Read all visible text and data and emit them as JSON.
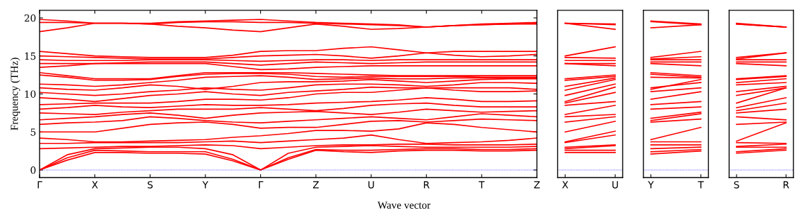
{
  "chart_data": [
    {
      "type": "line",
      "ylabel": "Frequency (THz)",
      "xlabel": "Wave vector",
      "ylim": [
        -1,
        21
      ],
      "yticks": [
        0,
        5,
        10,
        15,
        20
      ],
      "categories": [
        "Γ",
        null,
        "X",
        null,
        "S",
        null,
        "Y",
        null,
        "Γ",
        null,
        "Z",
        null,
        "U",
        null,
        "R",
        null,
        "T",
        null,
        "Z"
      ],
      "ref_lines": [
        {
          "axis": "y",
          "value": 0,
          "color": "#0000ff",
          "line_style": "dotted"
        }
      ],
      "series": [
        {
          "color": "#ff0000",
          "values": [
            0,
            1.3,
            2.3,
            2.3,
            2.2,
            2.2,
            2.1,
            1.2,
            0,
            1.4,
            2.6,
            2.4,
            2.3,
            2.5,
            2.6,
            2.6,
            2.5,
            2.5,
            2.6
          ]
        },
        {
          "color": "#ff0000",
          "values": [
            0,
            1.6,
            2.6,
            2.5,
            2.4,
            2.4,
            2.4,
            1.4,
            0,
            1.6,
            2.7,
            2.6,
            2.6,
            2.7,
            2.8,
            2.8,
            2.7,
            2.7,
            2.8
          ]
        },
        {
          "color": "#ff0000",
          "values": [
            0,
            2.0,
            2.8,
            2.9,
            3.0,
            3.0,
            2.8,
            2.0,
            0,
            2.2,
            3.0,
            3.1,
            3.2,
            3.1,
            3.0,
            3.0,
            3.0,
            3.0,
            3.1
          ]
        },
        {
          "color": "#ff0000",
          "values": [
            2.8,
            2.9,
            3.0,
            3.1,
            3.1,
            3.2,
            3.3,
            3.2,
            2.8,
            3.0,
            3.2,
            3.3,
            3.3,
            3.4,
            3.4,
            3.3,
            3.3,
            3.3,
            3.4
          ]
        },
        {
          "color": "#ff0000",
          "values": [
            3.5,
            3.5,
            3.6,
            3.6,
            3.6,
            3.6,
            3.7,
            3.8,
            3.6,
            3.8,
            4.0,
            4.2,
            4.6,
            4.0,
            3.5,
            3.6,
            3.7,
            3.9,
            4.2
          ]
        },
        {
          "color": "#ff0000",
          "values": [
            4.2,
            4.0,
            3.7,
            3.7,
            3.8,
            3.9,
            4.0,
            4.3,
            4.5,
            4.8,
            5.2,
            5.2,
            5.1,
            5.4,
            6.2,
            6.0,
            5.6,
            5.3,
            5.0
          ]
        },
        {
          "color": "#ff0000",
          "values": [
            5.0,
            5.0,
            5.0,
            5.5,
            6.0,
            6.2,
            6.3,
            6.0,
            5.5,
            5.6,
            5.6,
            6.0,
            6.4,
            6.5,
            6.3,
            6.5,
            6.7,
            6.6,
            6.5
          ]
        },
        {
          "color": "#ff0000",
          "values": [
            6.0,
            6.2,
            6.3,
            6.5,
            7.0,
            6.8,
            6.5,
            6.3,
            6.2,
            6.4,
            6.6,
            6.8,
            7.0,
            6.8,
            6.6,
            7.0,
            7.4,
            7.2,
            7.0
          ]
        },
        {
          "color": "#ff0000",
          "values": [
            6.6,
            6.8,
            7.0,
            7.3,
            7.5,
            7.2,
            6.8,
            7.2,
            7.5,
            7.6,
            7.7,
            7.5,
            7.3,
            7.6,
            8.0,
            7.8,
            7.6,
            7.7,
            7.8
          ]
        },
        {
          "color": "#ff0000",
          "values": [
            7.5,
            7.4,
            7.3,
            7.6,
            7.8,
            8.0,
            8.0,
            8.0,
            8.2,
            8.0,
            7.8,
            8.1,
            8.5,
            8.7,
            8.8,
            8.5,
            8.3,
            8.3,
            8.3
          ]
        },
        {
          "color": "#ff0000",
          "values": [
            8.0,
            8.2,
            8.5,
            8.3,
            8.2,
            8.4,
            8.6,
            8.5,
            8.5,
            8.6,
            8.8,
            8.9,
            9.0,
            9.2,
            9.5,
            9.3,
            9.0,
            9.0,
            9.1
          ]
        },
        {
          "color": "#ff0000",
          "values": [
            8.6,
            8.7,
            8.8,
            8.8,
            8.8,
            9.0,
            9.3,
            9.3,
            9.2,
            9.5,
            10.0,
            10.2,
            10.2,
            10.5,
            10.8,
            10.5,
            10.3,
            10.3,
            10.4
          ]
        },
        {
          "color": "#ff0000",
          "values": [
            9.5,
            9.3,
            9.0,
            9.4,
            9.8,
            10.0,
            10.3,
            10.0,
            9.8,
            10.2,
            10.4,
            10.6,
            10.9,
            10.8,
            10.8,
            10.8,
            10.8,
            10.8,
            10.6
          ]
        },
        {
          "color": "#ff0000",
          "values": [
            10.2,
            10.0,
            9.8,
            10.0,
            10.3,
            10.5,
            10.8,
            10.6,
            10.5,
            10.8,
            11.2,
            11.3,
            11.3,
            11.2,
            11.0,
            11.2,
            11.5,
            11.5,
            11.4
          ]
        },
        {
          "color": "#ff0000",
          "values": [
            10.8,
            10.6,
            10.5,
            10.8,
            11.2,
            11.0,
            10.6,
            11.0,
            11.5,
            11.6,
            11.6,
            11.7,
            11.9,
            11.7,
            11.5,
            11.7,
            11.9,
            12.0,
            12.0
          ]
        },
        {
          "color": "#ff0000",
          "values": [
            11.3,
            11.2,
            11.0,
            11.2,
            11.5,
            11.8,
            12.2,
            12.3,
            12.4,
            12.2,
            11.9,
            12.0,
            12.1,
            12.0,
            12.0,
            12.1,
            12.1,
            12.1,
            12.1
          ]
        },
        {
          "color": "#ff0000",
          "values": [
            12.5,
            12.2,
            11.8,
            11.8,
            11.9,
            12.3,
            12.6,
            12.7,
            12.7,
            12.6,
            12.3,
            12.2,
            12.3,
            12.3,
            12.3,
            12.3,
            12.2,
            12.2,
            12.2
          ]
        },
        {
          "color": "#ff0000",
          "values": [
            12.8,
            12.4,
            12.0,
            12.0,
            12.0,
            12.4,
            12.8,
            12.8,
            12.8,
            12.8,
            12.7,
            12.6,
            12.5,
            12.4,
            12.4,
            12.4,
            12.4,
            12.4,
            12.4
          ]
        },
        {
          "color": "#ff0000",
          "values": [
            13.5,
            13.7,
            14.0,
            14.0,
            14.0,
            14.0,
            14.0,
            13.6,
            13.2,
            13.3,
            13.5,
            13.6,
            13.7,
            13.7,
            13.7,
            13.7,
            13.7,
            13.7,
            13.7
          ]
        },
        {
          "color": "#ff0000",
          "values": [
            14.0,
            14.0,
            14.0,
            14.1,
            14.2,
            14.2,
            14.2,
            14.0,
            13.8,
            14.0,
            14.2,
            14.1,
            14.0,
            14.1,
            14.2,
            14.2,
            14.2,
            14.2,
            14.2
          ]
        },
        {
          "color": "#ff0000",
          "values": [
            14.5,
            14.4,
            14.4,
            14.4,
            14.5,
            14.5,
            14.5,
            14.4,
            14.3,
            14.4,
            14.5,
            14.5,
            14.4,
            14.5,
            14.5,
            14.5,
            14.5,
            14.5,
            14.5
          ]
        },
        {
          "color": "#ff0000",
          "values": [
            15.0,
            14.9,
            14.8,
            14.7,
            14.6,
            14.6,
            14.6,
            14.8,
            15.0,
            15.1,
            15.2,
            15.0,
            14.7,
            15.0,
            15.4,
            15.1,
            14.9,
            15.0,
            15.2
          ]
        },
        {
          "color": "#ff0000",
          "values": [
            15.6,
            15.3,
            15.0,
            14.9,
            14.8,
            14.8,
            14.8,
            15.1,
            15.6,
            15.7,
            15.7,
            16.0,
            16.2,
            15.8,
            15.4,
            15.6,
            15.6,
            15.6,
            15.6
          ]
        },
        {
          "color": "#ff0000",
          "values": [
            18.2,
            18.7,
            19.3,
            19.3,
            19.2,
            18.9,
            18.7,
            18.4,
            18.2,
            18.7,
            19.2,
            18.9,
            18.5,
            18.6,
            18.8,
            19.0,
            19.1,
            19.2,
            19.2
          ]
        },
        {
          "color": "#ff0000",
          "values": [
            19.4,
            19.4,
            19.3,
            19.3,
            19.2,
            19.4,
            19.5,
            19.5,
            19.4,
            19.4,
            19.3,
            19.2,
            19.1,
            19.0,
            18.8,
            19.0,
            19.1,
            19.2,
            19.3
          ]
        },
        {
          "color": "#ff0000",
          "values": [
            19.8,
            19.6,
            19.3,
            19.3,
            19.3,
            19.5,
            19.6,
            19.7,
            19.8,
            19.6,
            19.4,
            19.3,
            19.2,
            19.1,
            18.8,
            19.0,
            19.2,
            19.3,
            19.4
          ]
        }
      ]
    },
    {
      "type": "line",
      "tick_labels": "x",
      "ylim": [
        -1,
        21
      ],
      "yticks": [
        0,
        5,
        10,
        15,
        20
      ],
      "categories": [
        "X",
        "U"
      ],
      "ref_lines": [
        {
          "axis": "y",
          "value": 0,
          "color": "#0000ff",
          "line_style": "dotted"
        }
      ],
      "series": [
        {
          "color": "#ff0000",
          "values": [
            2.3,
            2.3
          ]
        },
        {
          "color": "#ff0000",
          "values": [
            2.6,
            2.6
          ]
        },
        {
          "color": "#ff0000",
          "values": [
            2.8,
            3.2
          ]
        },
        {
          "color": "#ff0000",
          "values": [
            3.0,
            3.3
          ]
        },
        {
          "color": "#ff0000",
          "values": [
            3.6,
            4.6
          ]
        },
        {
          "color": "#ff0000",
          "values": [
            3.7,
            5.1
          ]
        },
        {
          "color": "#ff0000",
          "values": [
            5.0,
            6.4
          ]
        },
        {
          "color": "#ff0000",
          "values": [
            6.3,
            7.0
          ]
        },
        {
          "color": "#ff0000",
          "values": [
            7.0,
            7.3
          ]
        },
        {
          "color": "#ff0000",
          "values": [
            7.3,
            8.5
          ]
        },
        {
          "color": "#ff0000",
          "values": [
            8.5,
            9.0
          ]
        },
        {
          "color": "#ff0000",
          "values": [
            8.8,
            10.2
          ]
        },
        {
          "color": "#ff0000",
          "values": [
            9.0,
            10.9
          ]
        },
        {
          "color": "#ff0000",
          "values": [
            9.8,
            11.3
          ]
        },
        {
          "color": "#ff0000",
          "values": [
            10.5,
            11.9
          ]
        },
        {
          "color": "#ff0000",
          "values": [
            11.0,
            12.1
          ]
        },
        {
          "color": "#ff0000",
          "values": [
            11.8,
            12.3
          ]
        },
        {
          "color": "#ff0000",
          "values": [
            12.0,
            12.5
          ]
        },
        {
          "color": "#ff0000",
          "values": [
            14.0,
            13.7
          ]
        },
        {
          "color": "#ff0000",
          "values": [
            14.0,
            14.0
          ]
        },
        {
          "color": "#ff0000",
          "values": [
            14.4,
            14.4
          ]
        },
        {
          "color": "#ff0000",
          "values": [
            14.8,
            14.7
          ]
        },
        {
          "color": "#ff0000",
          "values": [
            15.0,
            16.2
          ]
        },
        {
          "color": "#ff0000",
          "values": [
            19.3,
            18.5
          ]
        },
        {
          "color": "#ff0000",
          "values": [
            19.3,
            19.1
          ]
        },
        {
          "color": "#ff0000",
          "values": [
            19.3,
            19.2
          ]
        }
      ]
    },
    {
      "type": "line",
      "tick_labels": "x",
      "ylim": [
        -1,
        21
      ],
      "yticks": [
        0,
        5,
        10,
        15,
        20
      ],
      "categories": [
        "Y",
        "T"
      ],
      "ref_lines": [
        {
          "axis": "y",
          "value": 0,
          "color": "#0000ff",
          "line_style": "dotted"
        }
      ],
      "series": [
        {
          "color": "#ff0000",
          "values": [
            2.1,
            2.5
          ]
        },
        {
          "color": "#ff0000",
          "values": [
            2.4,
            2.7
          ]
        },
        {
          "color": "#ff0000",
          "values": [
            2.8,
            3.0
          ]
        },
        {
          "color": "#ff0000",
          "values": [
            3.3,
            3.3
          ]
        },
        {
          "color": "#ff0000",
          "values": [
            3.7,
            3.7
          ]
        },
        {
          "color": "#ff0000",
          "values": [
            4.0,
            5.6
          ]
        },
        {
          "color": "#ff0000",
          "values": [
            6.3,
            6.7
          ]
        },
        {
          "color": "#ff0000",
          "values": [
            6.5,
            7.4
          ]
        },
        {
          "color": "#ff0000",
          "values": [
            6.8,
            7.6
          ]
        },
        {
          "color": "#ff0000",
          "values": [
            8.0,
            8.3
          ]
        },
        {
          "color": "#ff0000",
          "values": [
            8.6,
            9.0
          ]
        },
        {
          "color": "#ff0000",
          "values": [
            9.3,
            10.3
          ]
        },
        {
          "color": "#ff0000",
          "values": [
            10.3,
            10.8
          ]
        },
        {
          "color": "#ff0000",
          "values": [
            10.8,
            11.5
          ]
        },
        {
          "color": "#ff0000",
          "values": [
            10.6,
            11.9
          ]
        },
        {
          "color": "#ff0000",
          "values": [
            12.2,
            12.1
          ]
        },
        {
          "color": "#ff0000",
          "values": [
            12.6,
            12.2
          ]
        },
        {
          "color": "#ff0000",
          "values": [
            12.8,
            12.4
          ]
        },
        {
          "color": "#ff0000",
          "values": [
            14.0,
            13.7
          ]
        },
        {
          "color": "#ff0000",
          "values": [
            14.2,
            14.2
          ]
        },
        {
          "color": "#ff0000",
          "values": [
            14.5,
            14.5
          ]
        },
        {
          "color": "#ff0000",
          "values": [
            14.6,
            14.9
          ]
        },
        {
          "color": "#ff0000",
          "values": [
            14.8,
            15.6
          ]
        },
        {
          "color": "#ff0000",
          "values": [
            18.7,
            19.1
          ]
        },
        {
          "color": "#ff0000",
          "values": [
            19.5,
            19.1
          ]
        },
        {
          "color": "#ff0000",
          "values": [
            19.6,
            19.2
          ]
        }
      ]
    },
    {
      "type": "line",
      "tick_labels": "x",
      "ylim": [
        -1,
        21
      ],
      "yticks": [
        0,
        5,
        10,
        15,
        20
      ],
      "categories": [
        "S",
        "R"
      ],
      "ref_lines": [
        {
          "axis": "y",
          "value": 0,
          "color": "#0000ff",
          "line_style": "dotted"
        }
      ],
      "series": [
        {
          "color": "#ff0000",
          "values": [
            2.2,
            2.6
          ]
        },
        {
          "color": "#ff0000",
          "values": [
            2.4,
            2.8
          ]
        },
        {
          "color": "#ff0000",
          "values": [
            3.0,
            3.0
          ]
        },
        {
          "color": "#ff0000",
          "values": [
            3.1,
            3.4
          ]
        },
        {
          "color": "#ff0000",
          "values": [
            3.6,
            3.5
          ]
        },
        {
          "color": "#ff0000",
          "values": [
            3.8,
            6.2
          ]
        },
        {
          "color": "#ff0000",
          "values": [
            6.0,
            6.3
          ]
        },
        {
          "color": "#ff0000",
          "values": [
            7.0,
            6.6
          ]
        },
        {
          "color": "#ff0000",
          "values": [
            7.5,
            8.0
          ]
        },
        {
          "color": "#ff0000",
          "values": [
            7.8,
            8.8
          ]
        },
        {
          "color": "#ff0000",
          "values": [
            8.2,
            9.5
          ]
        },
        {
          "color": "#ff0000",
          "values": [
            8.8,
            10.8
          ]
        },
        {
          "color": "#ff0000",
          "values": [
            9.8,
            10.8
          ]
        },
        {
          "color": "#ff0000",
          "values": [
            10.3,
            11.0
          ]
        },
        {
          "color": "#ff0000",
          "values": [
            11.2,
            11.5
          ]
        },
        {
          "color": "#ff0000",
          "values": [
            11.5,
            12.0
          ]
        },
        {
          "color": "#ff0000",
          "values": [
            11.9,
            12.3
          ]
        },
        {
          "color": "#ff0000",
          "values": [
            12.0,
            12.4
          ]
        },
        {
          "color": "#ff0000",
          "values": [
            14.0,
            13.7
          ]
        },
        {
          "color": "#ff0000",
          "values": [
            14.2,
            14.2
          ]
        },
        {
          "color": "#ff0000",
          "values": [
            14.5,
            14.5
          ]
        },
        {
          "color": "#ff0000",
          "values": [
            14.6,
            15.4
          ]
        },
        {
          "color": "#ff0000",
          "values": [
            14.8,
            15.4
          ]
        },
        {
          "color": "#ff0000",
          "values": [
            19.2,
            18.8
          ]
        },
        {
          "color": "#ff0000",
          "values": [
            19.2,
            18.8
          ]
        },
        {
          "color": "#ff0000",
          "values": [
            19.3,
            18.8
          ]
        }
      ]
    }
  ]
}
